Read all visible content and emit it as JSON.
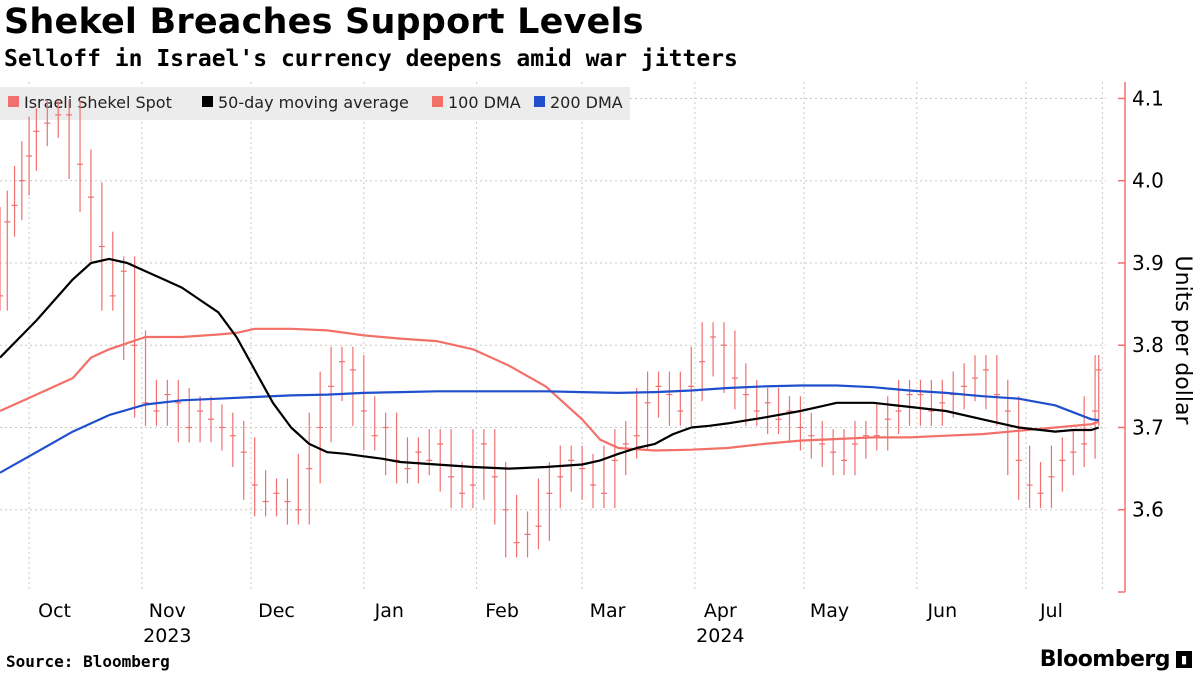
{
  "header": {
    "title": "Shekel Breaches Support Levels",
    "subtitle": "Selloff in Israel's currency deepens amid war jitters"
  },
  "footer": {
    "source": "Source: Bloomberg",
    "brand": "Bloomberg",
    "brand_icon": "bar-chart-icon"
  },
  "colors": {
    "spot": "#f07070",
    "ma50": "#000000",
    "dma100": "#f27068",
    "dma200": "#1f4fcc",
    "axis": "#f07070",
    "grid": "#c8c8c8"
  },
  "chart_data": {
    "type": "line",
    "ylabel": "Units per dollar",
    "ylim": [
      3.5,
      4.12
    ],
    "yticks": [
      3.6,
      3.7,
      3.8,
      3.9,
      4.0,
      4.1
    ],
    "ytick_labels": [
      "3.6",
      "3.7",
      "3.8",
      "3.9",
      "4.0",
      "4.1"
    ],
    "legend_position": "top-left",
    "x_unit": "days since 2023-09-23",
    "xlim": [
      0,
      304
    ],
    "xtick_labels": [
      {
        "label": "Oct",
        "x": 15
      },
      {
        "label": "Nov",
        "x": 46
      },
      {
        "label": "Dec",
        "x": 76
      },
      {
        "label": "Jan",
        "x": 107
      },
      {
        "label": "Feb",
        "x": 138
      },
      {
        "label": "Mar",
        "x": 167
      },
      {
        "label": "Apr",
        "x": 198
      },
      {
        "label": "May",
        "x": 228
      },
      {
        "label": "Jun",
        "x": 259
      },
      {
        "label": "Jul",
        "x": 289
      }
    ],
    "month_boundaries": [
      8,
      39,
      69,
      100,
      131,
      160,
      191,
      221,
      252,
      282,
      303
    ],
    "year_labels": [
      {
        "label": "2023",
        "x": 46
      },
      {
        "label": "2024",
        "x": 198
      }
    ],
    "series": [
      {
        "name": "Israeli Shekel Spot",
        "style": "bars",
        "x": [
          0,
          2,
          4,
          6,
          8,
          10,
          13,
          16,
          19,
          22,
          25,
          28,
          31,
          34,
          37,
          40,
          43,
          46,
          49,
          52,
          55,
          58,
          61,
          64,
          67,
          70,
          73,
          76,
          79,
          82,
          85,
          88,
          91,
          94,
          97,
          100,
          103,
          106,
          109,
          112,
          115,
          118,
          121,
          124,
          127,
          130,
          133,
          136,
          139,
          142,
          145,
          148,
          151,
          154,
          157,
          160,
          163,
          166,
          169,
          172,
          175,
          178,
          181,
          184,
          187,
          190,
          193,
          196,
          199,
          202,
          205,
          208,
          211,
          214,
          217,
          220,
          223,
          226,
          229,
          232,
          235,
          238,
          241,
          244,
          247,
          250,
          253,
          256,
          259,
          262,
          265,
          268,
          271,
          274,
          277,
          280,
          283,
          286,
          289,
          292,
          295,
          298,
          301,
          302
        ],
        "values": [
          3.86,
          3.95,
          3.97,
          4.0,
          4.03,
          4.06,
          4.07,
          4.08,
          4.08,
          4.02,
          3.98,
          3.92,
          3.86,
          3.89,
          3.8,
          3.73,
          3.72,
          3.74,
          3.73,
          3.7,
          3.72,
          3.71,
          3.7,
          3.69,
          3.67,
          3.63,
          3.61,
          3.62,
          3.61,
          3.6,
          3.65,
          3.7,
          3.75,
          3.78,
          3.77,
          3.72,
          3.69,
          3.7,
          3.66,
          3.65,
          3.67,
          3.66,
          3.68,
          3.64,
          3.62,
          3.63,
          3.68,
          3.64,
          3.6,
          3.56,
          3.57,
          3.58,
          3.62,
          3.64,
          3.66,
          3.65,
          3.63,
          3.62,
          3.66,
          3.68,
          3.69,
          3.73,
          3.75,
          3.74,
          3.72,
          3.75,
          3.78,
          3.81,
          3.8,
          3.76,
          3.74,
          3.72,
          3.73,
          3.71,
          3.72,
          3.7,
          3.69,
          3.68,
          3.67,
          3.66,
          3.68,
          3.69,
          3.69,
          3.71,
          3.72,
          3.74,
          3.74,
          3.72,
          3.73,
          3.74,
          3.75,
          3.76,
          3.77,
          3.74,
          3.72,
          3.66,
          3.63,
          3.62,
          3.64,
          3.66,
          3.67,
          3.68,
          3.72,
          3.77
        ]
      },
      {
        "name": "50-day moving average",
        "style": "line",
        "x": [
          0,
          10,
          20,
          25,
          30,
          35,
          40,
          45,
          50,
          55,
          60,
          65,
          70,
          75,
          80,
          85,
          90,
          95,
          100,
          105,
          110,
          120,
          130,
          140,
          150,
          160,
          165,
          170,
          175,
          180,
          185,
          190,
          195,
          200,
          210,
          220,
          225,
          230,
          240,
          250,
          260,
          270,
          280,
          290,
          295,
          300,
          302
        ],
        "values": [
          3.785,
          3.83,
          3.88,
          3.9,
          3.905,
          3.9,
          3.89,
          3.88,
          3.87,
          3.855,
          3.84,
          3.81,
          3.77,
          3.73,
          3.7,
          3.68,
          3.67,
          3.668,
          3.665,
          3.662,
          3.658,
          3.655,
          3.652,
          3.65,
          3.652,
          3.655,
          3.66,
          3.668,
          3.675,
          3.68,
          3.692,
          3.7,
          3.702,
          3.705,
          3.712,
          3.72,
          3.725,
          3.73,
          3.73,
          3.725,
          3.72,
          3.71,
          3.7,
          3.695,
          3.697,
          3.697,
          3.7
        ]
      },
      {
        "name": "100 DMA",
        "style": "line",
        "x": [
          0,
          10,
          20,
          25,
          30,
          40,
          50,
          60,
          65,
          70,
          80,
          90,
          100,
          110,
          120,
          130,
          140,
          150,
          160,
          165,
          170,
          180,
          190,
          200,
          210,
          220,
          230,
          240,
          250,
          260,
          270,
          280,
          290,
          300,
          302
        ],
        "values": [
          3.72,
          3.74,
          3.76,
          3.785,
          3.795,
          3.81,
          3.81,
          3.813,
          3.815,
          3.82,
          3.82,
          3.818,
          3.812,
          3.808,
          3.805,
          3.795,
          3.775,
          3.75,
          3.71,
          3.685,
          3.675,
          3.672,
          3.673,
          3.675,
          3.68,
          3.684,
          3.686,
          3.688,
          3.688,
          3.69,
          3.692,
          3.696,
          3.7,
          3.704,
          3.707
        ]
      },
      {
        "name": "200 DMA",
        "style": "line",
        "x": [
          0,
          10,
          20,
          30,
          40,
          50,
          60,
          70,
          80,
          90,
          100,
          110,
          120,
          130,
          140,
          150,
          160,
          170,
          180,
          190,
          200,
          210,
          220,
          230,
          240,
          250,
          260,
          270,
          280,
          290,
          300,
          302
        ],
        "values": [
          3.645,
          3.67,
          3.695,
          3.715,
          3.728,
          3.733,
          3.735,
          3.737,
          3.739,
          3.74,
          3.742,
          3.743,
          3.744,
          3.744,
          3.744,
          3.744,
          3.743,
          3.742,
          3.743,
          3.745,
          3.748,
          3.75,
          3.751,
          3.751,
          3.749,
          3.745,
          3.742,
          3.738,
          3.735,
          3.727,
          3.71,
          3.709
        ]
      }
    ]
  }
}
